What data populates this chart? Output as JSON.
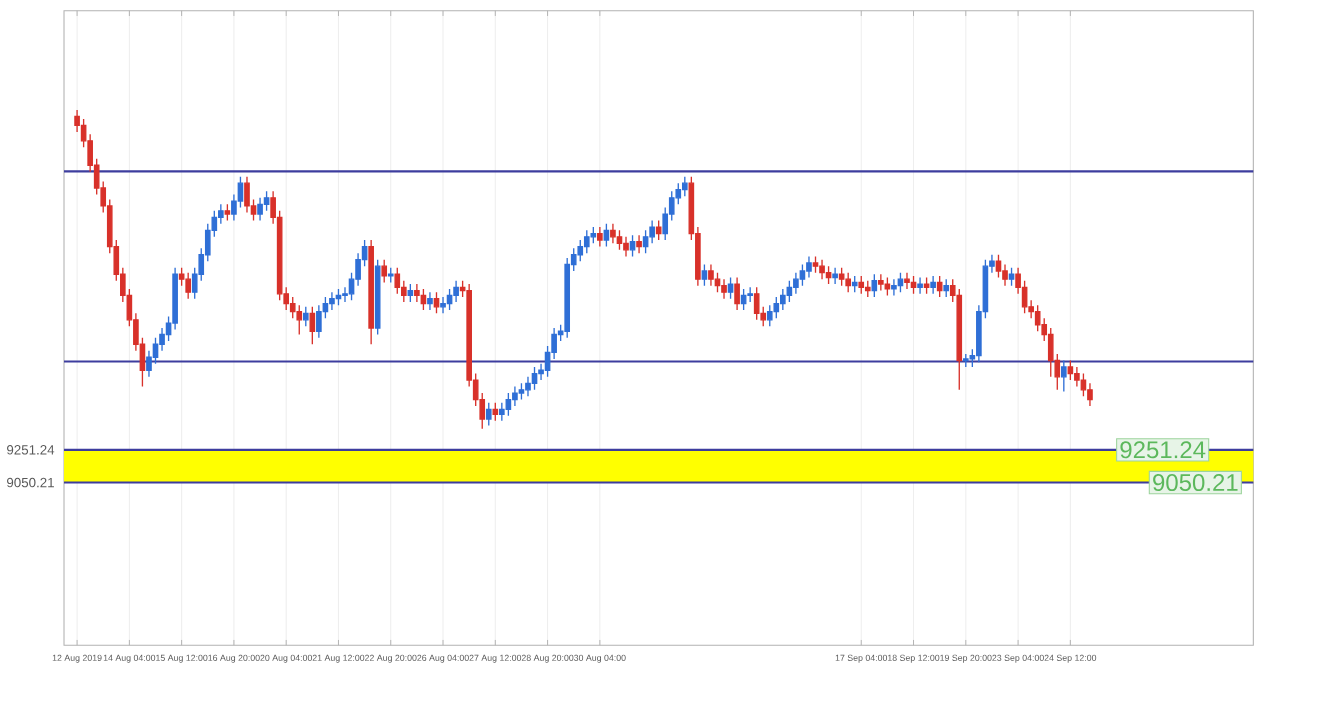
{
  "chart_data": {
    "type": "candlestick",
    "categories": [
      "12 Aug 2019",
      null,
      null,
      null,
      null,
      null,
      null,
      null,
      "14 Aug 04:00",
      null,
      null,
      null,
      null,
      null,
      null,
      null,
      "15 Aug 12:00",
      null,
      null,
      null,
      null,
      null,
      null,
      null,
      "16 Aug 20:00",
      null,
      null,
      null,
      null,
      null,
      null,
      null,
      "20 Aug 04:00",
      null,
      null,
      null,
      null,
      null,
      null,
      null,
      "21 Aug 12:00",
      null,
      null,
      null,
      null,
      null,
      null,
      null,
      "22 Aug 20:00",
      null,
      null,
      null,
      null,
      null,
      null,
      null,
      "26 Aug 04:00",
      null,
      null,
      null,
      null,
      null,
      null,
      null,
      "27 Aug 12:00",
      null,
      null,
      null,
      null,
      null,
      null,
      null,
      "28 Aug 20:00",
      null,
      null,
      null,
      null,
      null,
      null,
      null,
      "30 Aug 04:00",
      null,
      null,
      null,
      null,
      null,
      null,
      null,
      null,
      null,
      null,
      null,
      null,
      null,
      null,
      null,
      null,
      null,
      null,
      null,
      null,
      null,
      null,
      null,
      null,
      null,
      null,
      null,
      null,
      null,
      null,
      null,
      null,
      null,
      null,
      null,
      null,
      null,
      null,
      null,
      "17 Sep 04:00",
      null,
      null,
      null,
      null,
      null,
      null,
      null,
      "18 Sep 12:00",
      null,
      null,
      null,
      null,
      null,
      null,
      null,
      "19 Sep 20:00",
      null,
      null,
      null,
      null,
      null,
      null,
      null,
      "23 Sep 04:00",
      null,
      null,
      null,
      null,
      null,
      null,
      null,
      "24 Sep 12:00",
      null,
      null,
      null
    ],
    "ohlc": [
      [
        11300,
        11340,
        11205,
        11245
      ],
      [
        11245,
        11285,
        11110,
        11150
      ],
      [
        11150,
        11190,
        10960,
        11000
      ],
      [
        11000,
        11040,
        10820,
        10860
      ],
      [
        10860,
        10900,
        10710,
        10750
      ],
      [
        10750,
        10790,
        10460,
        10500
      ],
      [
        10500,
        10540,
        10290,
        10330
      ],
      [
        10330,
        10370,
        10160,
        10200
      ],
      [
        10200,
        10240,
        10010,
        10050
      ],
      [
        10050,
        10090,
        9860,
        9900
      ],
      [
        9900,
        9940,
        9640,
        9740
      ],
      [
        9740,
        9860,
        9700,
        9820
      ],
      [
        9820,
        9940,
        9780,
        9900
      ],
      [
        9900,
        10000,
        9860,
        9960
      ],
      [
        9960,
        10070,
        9920,
        10030
      ],
      [
        10030,
        10370,
        9990,
        10330
      ],
      [
        10330,
        10370,
        10260,
        10300
      ],
      [
        10300,
        10340,
        10180,
        10220
      ],
      [
        10220,
        10370,
        10180,
        10330
      ],
      [
        10330,
        10490,
        10290,
        10450
      ],
      [
        10450,
        10640,
        10410,
        10600
      ],
      [
        10600,
        10720,
        10560,
        10680
      ],
      [
        10680,
        10760,
        10640,
        10720
      ],
      [
        10720,
        10760,
        10660,
        10700
      ],
      [
        10700,
        10820,
        10660,
        10780
      ],
      [
        10780,
        10930,
        10740,
        10890
      ],
      [
        10890,
        10930,
        10710,
        10750
      ],
      [
        10750,
        10790,
        10660,
        10700
      ],
      [
        10700,
        10800,
        10660,
        10760
      ],
      [
        10760,
        10840,
        10720,
        10800
      ],
      [
        10800,
        10840,
        10640,
        10680
      ],
      [
        10680,
        10720,
        10170,
        10210
      ],
      [
        10210,
        10250,
        10110,
        10150
      ],
      [
        10150,
        10190,
        10060,
        10100
      ],
      [
        10100,
        10140,
        9960,
        10050
      ],
      [
        10050,
        10130,
        10010,
        10090
      ],
      [
        10090,
        10130,
        9900,
        9980
      ],
      [
        9980,
        10140,
        9940,
        10100
      ],
      [
        10100,
        10190,
        10060,
        10150
      ],
      [
        10150,
        10220,
        10110,
        10180
      ],
      [
        10180,
        10240,
        10140,
        10200
      ],
      [
        10200,
        10250,
        10160,
        10210
      ],
      [
        10210,
        10340,
        10170,
        10300
      ],
      [
        10300,
        10460,
        10260,
        10420
      ],
      [
        10420,
        10540,
        10380,
        10500
      ],
      [
        10500,
        10540,
        9900,
        10000
      ],
      [
        10000,
        10420,
        9960,
        10380
      ],
      [
        10380,
        10420,
        10280,
        10320
      ],
      [
        10320,
        10370,
        10280,
        10330
      ],
      [
        10330,
        10370,
        10210,
        10250
      ],
      [
        10250,
        10290,
        10160,
        10200
      ],
      [
        10200,
        10270,
        10160,
        10230
      ],
      [
        10230,
        10270,
        10160,
        10200
      ],
      [
        10200,
        10240,
        10110,
        10150
      ],
      [
        10150,
        10220,
        10110,
        10180
      ],
      [
        10180,
        10220,
        10090,
        10130
      ],
      [
        10130,
        10190,
        10090,
        10150
      ],
      [
        10150,
        10240,
        10110,
        10200
      ],
      [
        10200,
        10290,
        10160,
        10250
      ],
      [
        10250,
        10290,
        10190,
        10230
      ],
      [
        10230,
        10270,
        9640,
        9680
      ],
      [
        9680,
        9720,
        9520,
        9560
      ],
      [
        9560,
        9600,
        9380,
        9440
      ],
      [
        9440,
        9540,
        9400,
        9500
      ],
      [
        9500,
        9540,
        9430,
        9470
      ],
      [
        9470,
        9540,
        9430,
        9500
      ],
      [
        9500,
        9600,
        9460,
        9560
      ],
      [
        9560,
        9640,
        9520,
        9600
      ],
      [
        9600,
        9660,
        9560,
        9620
      ],
      [
        9620,
        9700,
        9580,
        9660
      ],
      [
        9660,
        9760,
        9620,
        9720
      ],
      [
        9720,
        9780,
        9680,
        9740
      ],
      [
        9740,
        9890,
        9700,
        9850
      ],
      [
        9850,
        10000,
        9810,
        9960
      ],
      [
        9960,
        10020,
        9920,
        9980
      ],
      [
        9980,
        10430,
        9940,
        10390
      ],
      [
        10390,
        10490,
        10350,
        10450
      ],
      [
        10450,
        10540,
        10410,
        10500
      ],
      [
        10500,
        10600,
        10460,
        10560
      ],
      [
        10560,
        10620,
        10520,
        10580
      ],
      [
        10580,
        10620,
        10500,
        10540
      ],
      [
        10540,
        10640,
        10500,
        10600
      ],
      [
        10600,
        10640,
        10520,
        10560
      ],
      [
        10560,
        10600,
        10480,
        10520
      ],
      [
        10520,
        10560,
        10440,
        10480
      ],
      [
        10480,
        10570,
        10440,
        10530
      ],
      [
        10530,
        10570,
        10460,
        10500
      ],
      [
        10500,
        10600,
        10460,
        10560
      ],
      [
        10560,
        10660,
        10520,
        10620
      ],
      [
        10620,
        10660,
        10540,
        10580
      ],
      [
        10580,
        10740,
        10540,
        10700
      ],
      [
        10700,
        10840,
        10660,
        10800
      ],
      [
        10800,
        10890,
        10760,
        10850
      ],
      [
        10850,
        10930,
        10810,
        10890
      ],
      [
        10890,
        10930,
        10540,
        10580
      ],
      [
        10580,
        10620,
        10260,
        10300
      ],
      [
        10300,
        10390,
        10260,
        10350
      ],
      [
        10350,
        10390,
        10260,
        10300
      ],
      [
        10300,
        10340,
        10220,
        10260
      ],
      [
        10260,
        10300,
        10180,
        10220
      ],
      [
        10220,
        10310,
        10180,
        10270
      ],
      [
        10270,
        10310,
        10110,
        10150
      ],
      [
        10150,
        10240,
        10110,
        10200
      ],
      [
        10200,
        10250,
        10160,
        10210
      ],
      [
        10210,
        10250,
        10050,
        10090
      ],
      [
        10090,
        10130,
        10010,
        10050
      ],
      [
        10050,
        10140,
        10010,
        10100
      ],
      [
        10100,
        10190,
        10060,
        10150
      ],
      [
        10150,
        10240,
        10110,
        10200
      ],
      [
        10200,
        10290,
        10160,
        10250
      ],
      [
        10250,
        10340,
        10210,
        10300
      ],
      [
        10300,
        10390,
        10260,
        10350
      ],
      [
        10350,
        10440,
        10310,
        10400
      ],
      [
        10400,
        10440,
        10340,
        10380
      ],
      [
        10380,
        10420,
        10300,
        10340
      ],
      [
        10340,
        10380,
        10270,
        10310
      ],
      [
        10310,
        10370,
        10270,
        10330
      ],
      [
        10330,
        10370,
        10260,
        10300
      ],
      [
        10300,
        10340,
        10220,
        10260
      ],
      [
        10260,
        10320,
        10220,
        10280
      ],
      [
        10280,
        10320,
        10210,
        10250
      ],
      [
        10250,
        10290,
        10190,
        10230
      ],
      [
        10230,
        10330,
        10190,
        10290
      ],
      [
        10290,
        10330,
        10230,
        10270
      ],
      [
        10270,
        10310,
        10200,
        10240
      ],
      [
        10240,
        10300,
        10200,
        10260
      ],
      [
        10260,
        10340,
        10220,
        10300
      ],
      [
        10300,
        10340,
        10240,
        10280
      ],
      [
        10280,
        10320,
        10210,
        10250
      ],
      [
        10250,
        10310,
        10210,
        10270
      ],
      [
        10270,
        10310,
        10210,
        10250
      ],
      [
        10250,
        10320,
        10210,
        10280
      ],
      [
        10280,
        10320,
        10190,
        10230
      ],
      [
        10230,
        10300,
        10190,
        10260
      ],
      [
        10260,
        10300,
        10160,
        10200
      ],
      [
        10200,
        10240,
        9620,
        9800
      ],
      [
        9800,
        9840,
        9760,
        9810
      ],
      [
        9810,
        9870,
        9760,
        9830
      ],
      [
        9830,
        10140,
        9790,
        10100
      ],
      [
        10100,
        10420,
        10060,
        10380
      ],
      [
        10380,
        10450,
        10340,
        10410
      ],
      [
        10410,
        10450,
        10310,
        10350
      ],
      [
        10350,
        10390,
        10260,
        10300
      ],
      [
        10300,
        10370,
        10260,
        10330
      ],
      [
        10330,
        10370,
        10210,
        10250
      ],
      [
        10250,
        10290,
        10090,
        10130
      ],
      [
        10130,
        10170,
        10060,
        10100
      ],
      [
        10100,
        10140,
        9980,
        10020
      ],
      [
        10020,
        10060,
        9920,
        9960
      ],
      [
        9960,
        10000,
        9700,
        9800
      ],
      [
        9800,
        9840,
        9620,
        9700
      ],
      [
        9700,
        9800,
        9610,
        9760
      ],
      [
        9760,
        9800,
        9680,
        9720
      ],
      [
        9720,
        9760,
        9640,
        9680
      ],
      [
        9680,
        9720,
        9580,
        9620
      ],
      [
        9620,
        9660,
        9520,
        9560
      ]
    ],
    "ylim": [
      8050,
      11950
    ],
    "yticks": [
      {
        "value": 9050.21,
        "label": "9050.21"
      },
      {
        "value": 9251.24,
        "label": "9251.24"
      }
    ],
    "grid": true,
    "ref_lines": [
      {
        "axis": "y",
        "value": 10962,
        "color": "#3d3d9e"
      },
      {
        "axis": "y",
        "value": 9794,
        "color": "#3d3d9e"
      },
      {
        "axis": "y",
        "value": 9251.24,
        "color": "#3d3d9e"
      },
      {
        "axis": "y",
        "value": 9050.21,
        "color": "#3d3d9e"
      }
    ],
    "bands": [
      {
        "axis": "y",
        "from": 9050.21,
        "to": 9251.24,
        "color": "#ffff00"
      }
    ],
    "annotations": [
      {
        "text": "9251.24",
        "y": 9251.24
      },
      {
        "text": "9050.21",
        "y": 9050.21
      }
    ]
  }
}
